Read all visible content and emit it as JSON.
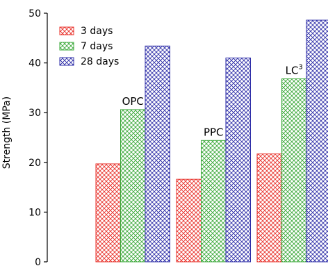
{
  "chart_data": {
    "type": "bar",
    "categories": [
      "OPC",
      "PPC",
      "LC"
    ],
    "category_label_sup": {
      "LC": "3"
    },
    "series": [
      {
        "name": "3 days",
        "values": [
          19.7,
          16.6,
          21.7
        ],
        "color": "#e8302a"
      },
      {
        "name": "7 days",
        "values": [
          30.6,
          24.4,
          36.8
        ],
        "color": "#3aa838"
      },
      {
        "name": "28 days",
        "values": [
          43.4,
          41.0,
          48.6
        ],
        "color": "#2e2ea8"
      }
    ],
    "ylabel": "Strength (MPa)",
    "ylim": [
      0,
      50
    ],
    "yticks": [
      0,
      10,
      20,
      30,
      40,
      50
    ],
    "grid": false,
    "legend_position": "top-left"
  }
}
